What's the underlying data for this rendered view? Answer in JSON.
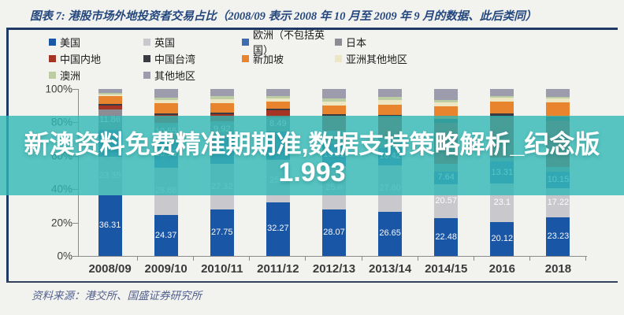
{
  "figure": {
    "title": "图表 7: 港股市场外地投资者交易占比（2008/09 表示 2008 年 10 月至 2009 年 9 月的数据、此后类同）",
    "source": "资料来源：港交所、国盛证券研究所",
    "accent_color": "#1F3864"
  },
  "overlay": {
    "line1": "新澳资料免费精准期期准,数据支持策略解析_纪念版",
    "line2": "1.993",
    "band_color": "rgba(47,184,181,0.8)",
    "text_color": "#FFFFFF"
  },
  "chart_data": {
    "type": "bar",
    "stacked": true,
    "unit": "%",
    "ylim": [
      0,
      100
    ],
    "y_ticks": [
      "100%",
      "80%",
      "60%",
      "40%",
      "20%",
      "0%"
    ],
    "grid": false,
    "legend_position": "top",
    "categories": [
      "2008/09",
      "2009/10",
      "2010/11",
      "2011/12",
      "2012/13",
      "2013/14",
      "2014/15",
      "2016",
      "2018"
    ],
    "series": [
      {
        "name": "美国",
        "color": "#1A56A6",
        "values": [
          36.31,
          24.37,
          27.75,
          32.27,
          28.07,
          26.65,
          22.48,
          20.12,
          23.23
        ],
        "labels": [
          "36.31",
          "24.37",
          "27.75",
          "32.27",
          "28.07",
          "26.65",
          "22.48",
          "20.12",
          "23.23"
        ]
      },
      {
        "name": "英国",
        "color": "#C9C9CD",
        "values": [
          23.35,
          28.68,
          27.32,
          25.3,
          25.6,
          27.6,
          20.57,
          23.1,
          17.22
        ],
        "labels": [
          "23.35",
          "28.68",
          "27.32",
          "25.3",
          "25.6",
          "27.60",
          "20.57",
          "23.1",
          "17.22"
        ]
      },
      {
        "name": "欧洲（不包括英国）",
        "color": "#3E6CB0",
        "values": [
          16.0,
          16.13,
          15.91,
          17.0,
          13.62,
          10.42,
          7.64,
          13.31,
          10.15
        ],
        "labels": [
          null,
          "16.13",
          "15.91",
          null,
          "13.62",
          "10.42",
          "7.64",
          "13.31",
          "10.15"
        ]
      },
      {
        "name": "日本",
        "color": "#8C8C94",
        "values": [
          11.86,
          10.55,
          9.92,
          8.49,
          7.5,
          6.5,
          4.5,
          2.55,
          2.5
        ],
        "labels": [
          "11.86",
          "10.55",
          "9.92",
          "8.49",
          null,
          null,
          null,
          null,
          null
        ]
      },
      {
        "name": "中国内地",
        "color": "#A63425",
        "values": [
          2.6,
          4.5,
          4.0,
          4.0,
          9.0,
          12.0,
          24.5,
          24.0,
          28.0
        ],
        "labels": [
          null,
          null,
          null,
          null,
          null,
          null,
          null,
          null,
          null
        ]
      },
      {
        "name": "中国台湾",
        "color": "#3A3A42",
        "values": [
          0.9,
          1.2,
          1.1,
          1.0,
          1.2,
          1.3,
          2.31,
          2.42,
          2.4
        ],
        "labels": [
          null,
          null,
          null,
          null,
          null,
          null,
          null,
          null,
          null
        ]
      },
      {
        "name": "新加坡",
        "color": "#E8832E",
        "values": [
          4.6,
          6.0,
          5.5,
          4.5,
          5.0,
          6.0,
          7.5,
          7.0,
          8.5
        ],
        "labels": [
          null,
          null,
          null,
          null,
          null,
          null,
          null,
          null,
          null
        ]
      },
      {
        "name": "亚洲其他地区",
        "color": "#EDE6C2",
        "values": [
          1.3,
          2.0,
          2.5,
          2.0,
          2.5,
          3.0,
          2.5,
          2.5,
          2.5
        ],
        "labels": [
          null,
          null,
          null,
          null,
          null,
          null,
          null,
          null,
          null
        ]
      },
      {
        "name": "澳洲",
        "color": "#BCCDA4",
        "values": [
          0.6,
          1.5,
          2.0,
          1.44,
          2.0,
          2.0,
          1.5,
          1.0,
          0.8
        ],
        "labels": [
          null,
          null,
          null,
          null,
          null,
          null,
          null,
          null,
          null
        ]
      },
      {
        "name": "其他地区",
        "color": "#9C9CAC",
        "values": [
          2.48,
          5.07,
          4.0,
          4.0,
          5.51,
          4.53,
          6.5,
          4.0,
          4.7
        ],
        "labels": [
          null,
          null,
          null,
          null,
          null,
          null,
          null,
          null,
          null
        ]
      }
    ]
  }
}
